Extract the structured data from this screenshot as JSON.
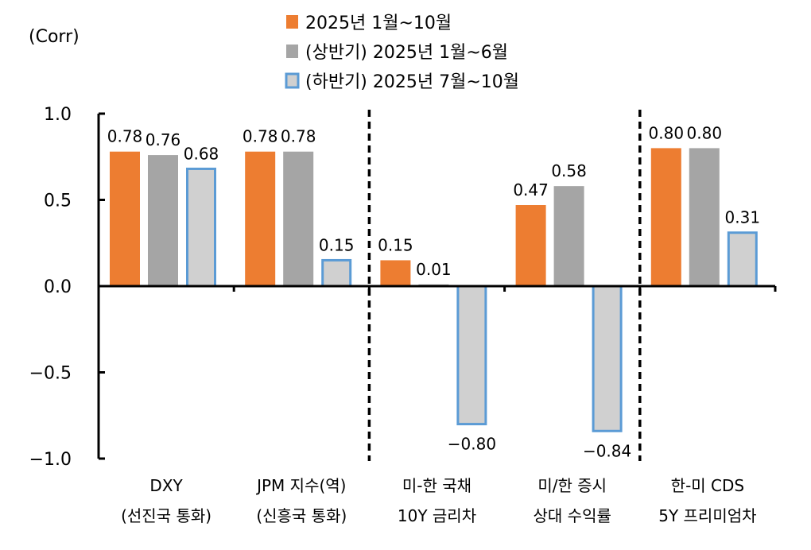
{
  "chart_data": {
    "type": "bar",
    "ylabel": "(Corr)",
    "ylim": [
      -1.0,
      1.0
    ],
    "yticks": [
      "1.0",
      "0.5",
      "0.0",
      "-0.5",
      "-1.0"
    ],
    "ytick_values": [
      1.0,
      0.5,
      0.0,
      -0.5,
      -1.0
    ],
    "grid": false,
    "legend_position": "top-center",
    "categories": [
      [
        "DXY",
        "(선진국 통화)"
      ],
      [
        "JPM 지수(역)",
        "(신흥국 통화)"
      ],
      [
        "미-한 국채",
        "10Y 금리차"
      ],
      [
        "미/한 증시",
        "상대 수익률"
      ],
      [
        "한-미 CDS",
        "5Y 프리미엄차"
      ]
    ],
    "dividers_after_category": [
      1,
      3
    ],
    "series": [
      {
        "name": "2025년 1월~10월",
        "color": "#ED7D31",
        "border": "none",
        "values": [
          0.78,
          0.78,
          0.15,
          0.47,
          0.8
        ],
        "labels": [
          "0.78",
          "0.78",
          "0.15",
          "0.47",
          "0.80"
        ]
      },
      {
        "name": "(상반기) 2025년 1월~6월",
        "color": "#A5A5A5",
        "border": "none",
        "values": [
          0.76,
          0.78,
          0.01,
          0.58,
          0.8
        ],
        "labels": [
          "0.76",
          "0.78",
          "0.01",
          "0.58",
          "0.80"
        ]
      },
      {
        "name": "(하반기) 2025년 7월~10월",
        "color": "#D0D0D0",
        "border": "#5B9BD5",
        "values": [
          0.68,
          0.15,
          -0.8,
          -0.84,
          0.31
        ],
        "labels": [
          "0.68",
          "0.15",
          "-0.80",
          "-0.84",
          "0.31"
        ]
      }
    ]
  }
}
